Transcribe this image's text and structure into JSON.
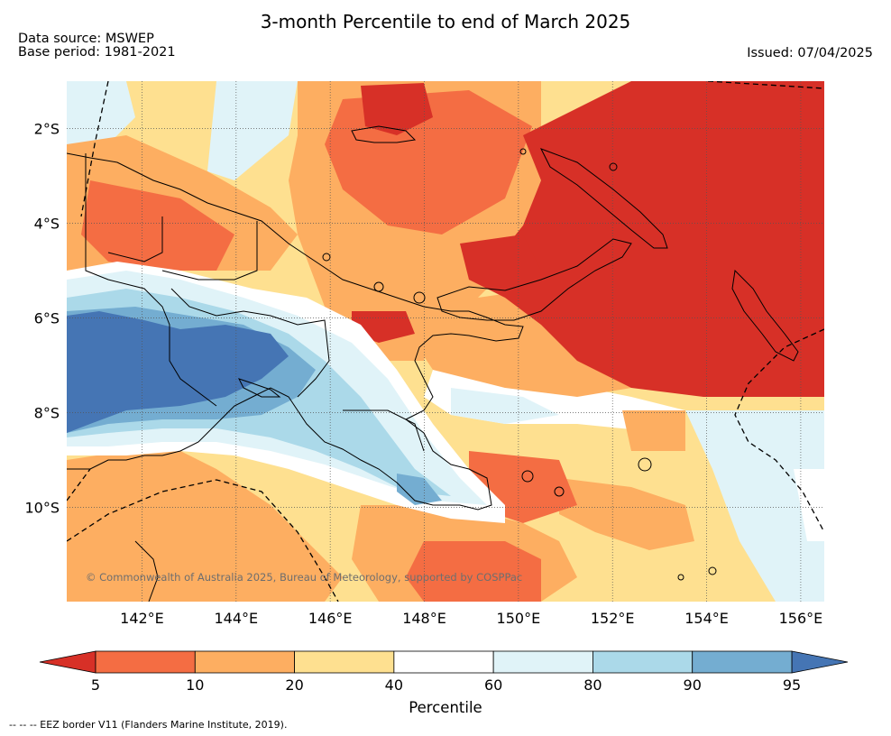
{
  "title": "3-month Percentile to end of March 2025",
  "data_source": "Data source: MSWEP",
  "base_period": "Base period: 1981-2021",
  "issued": "Issued: 07/04/2025",
  "copyright": "© Commonwealth of Australia 2025, Bureau of Meteorology, supported by COSPPac",
  "footnote": "-- -- -- EEZ border V11 (Flanders Marine Institute, 2019).",
  "map": {
    "lon_range": [
      140.4,
      156.5
    ],
    "lat_range": [
      -11.99,
      -1.0
    ],
    "lon_ticks": [
      {
        "value": 142,
        "label": "142°E"
      },
      {
        "value": 144,
        "label": "144°E"
      },
      {
        "value": 146,
        "label": "146°E"
      },
      {
        "value": 148,
        "label": "148°E"
      },
      {
        "value": 150,
        "label": "150°E"
      },
      {
        "value": 152,
        "label": "152°E"
      },
      {
        "value": 154,
        "label": "154°E"
      },
      {
        "value": 156,
        "label": "156°E"
      }
    ],
    "lat_ticks": [
      {
        "value": -2,
        "label": "2°S"
      },
      {
        "value": -4,
        "label": "4°S"
      },
      {
        "value": -6,
        "label": "6°S"
      },
      {
        "value": -8,
        "label": "8°S"
      },
      {
        "value": -10,
        "label": "10°S"
      }
    ],
    "gridlines": true
  },
  "colorbar": {
    "title": "Percentile",
    "ticks": [
      "5",
      "10",
      "20",
      "40",
      "60",
      "80",
      "90",
      "95"
    ],
    "under_color": "#d73027",
    "over_color": "#4575b4",
    "bins": [
      {
        "from": 5,
        "to": 10,
        "color": "#f46d43"
      },
      {
        "from": 10,
        "to": 20,
        "color": "#fdae61"
      },
      {
        "from": 20,
        "to": 40,
        "color": "#fee090"
      },
      {
        "from": 40,
        "to": 60,
        "color": "#ffffff"
      },
      {
        "from": 60,
        "to": 80,
        "color": "#e0f3f8"
      },
      {
        "from": 80,
        "to": 90,
        "color": "#abd9e9"
      },
      {
        "from": 90,
        "to": 95,
        "color": "#74add1"
      }
    ]
  }
}
